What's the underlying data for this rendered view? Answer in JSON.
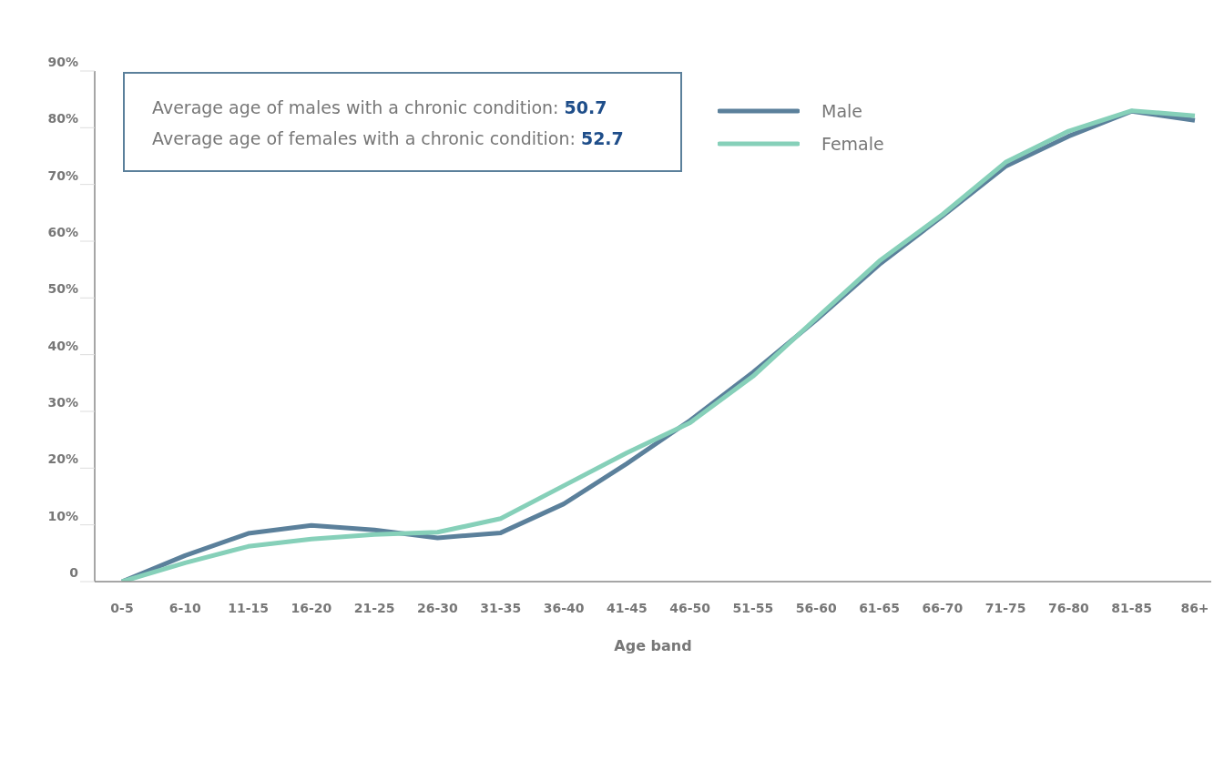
{
  "chart_data": {
    "type": "line",
    "xlabel": "Age band",
    "categories": [
      "0-5",
      "6-10",
      "11-15",
      "16-20",
      "21-25",
      "26-30",
      "31-35",
      "36-40",
      "41-45",
      "46-50",
      "51-55",
      "56-60",
      "61-65",
      "66-70",
      "71-75",
      "76-80",
      "81-85",
      "86+"
    ],
    "series": [
      {
        "name": "Male",
        "color": "#5b809b",
        "values": [
          0,
          4.6,
          8.5,
          9.9,
          9.1,
          7.7,
          8.6,
          13.7,
          20.8,
          28.4,
          36.9,
          46.1,
          55.9,
          64.4,
          73.2,
          78.5,
          82.9,
          81.3
        ]
      },
      {
        "name": "Female",
        "color": "#86d0b9",
        "values": [
          0,
          3.3,
          6.2,
          7.5,
          8.3,
          8.7,
          11.1,
          16.9,
          22.7,
          28.0,
          36.2,
          46.4,
          56.5,
          64.7,
          73.9,
          79.4,
          83.0,
          82.1
        ]
      }
    ],
    "ylim": [
      0,
      90
    ],
    "yticks": [
      {
        "value": 0,
        "label": "0"
      },
      {
        "value": 10,
        "label": "10%"
      },
      {
        "value": 20,
        "label": "20%"
      },
      {
        "value": 30,
        "label": "30%"
      },
      {
        "value": 40,
        "label": "40%"
      },
      {
        "value": 50,
        "label": "50%"
      },
      {
        "value": 60,
        "label": "60%"
      },
      {
        "value": 70,
        "label": "70%"
      },
      {
        "value": 80,
        "label": "80%"
      },
      {
        "value": 90,
        "label": "90%"
      }
    ],
    "annotations": [
      "Average age of males with a chronic condition: 50.7",
      "Average age of females with a chronic condition: 52.7"
    ],
    "grid": false,
    "legend": "top",
    "marker": "none",
    "line_style": "solid"
  }
}
